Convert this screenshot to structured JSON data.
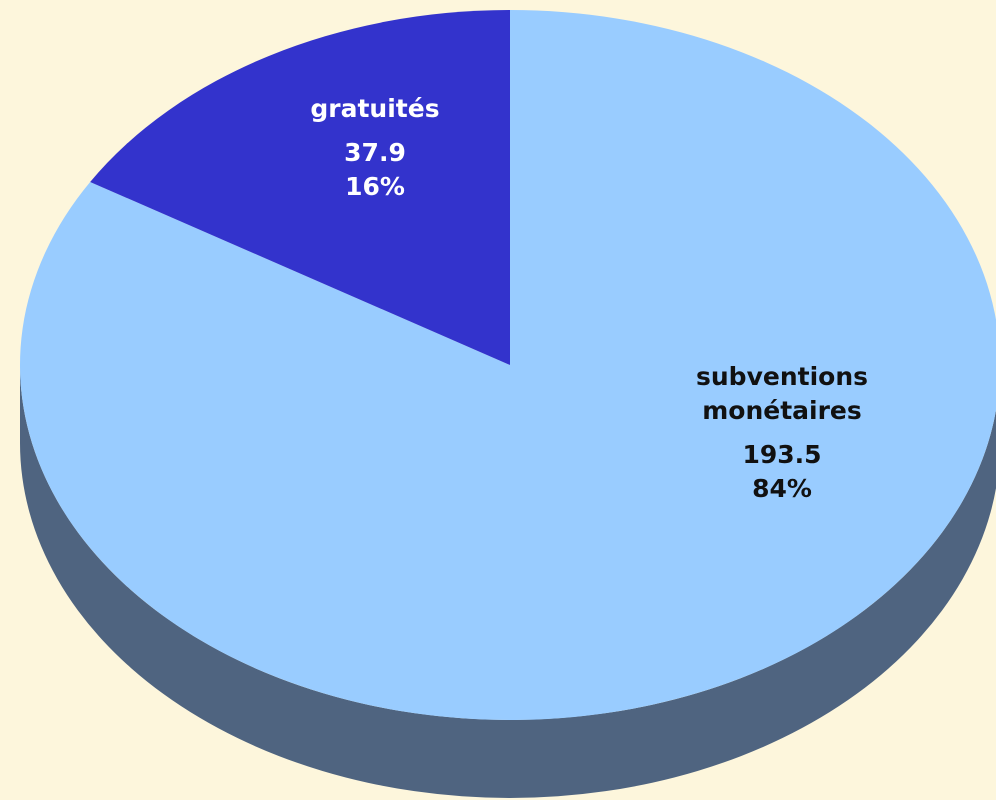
{
  "chart_data": {
    "type": "pie",
    "categories": [
      "subventions monétaires",
      "gratuités"
    ],
    "values": [
      193.5,
      37.9
    ],
    "value_labels": [
      "193.5",
      "37.9"
    ],
    "percent_labels": [
      "84%",
      "16%"
    ],
    "colors": [
      "#99ccff",
      "#3333cc"
    ],
    "side_color": "#4f6480"
  }
}
